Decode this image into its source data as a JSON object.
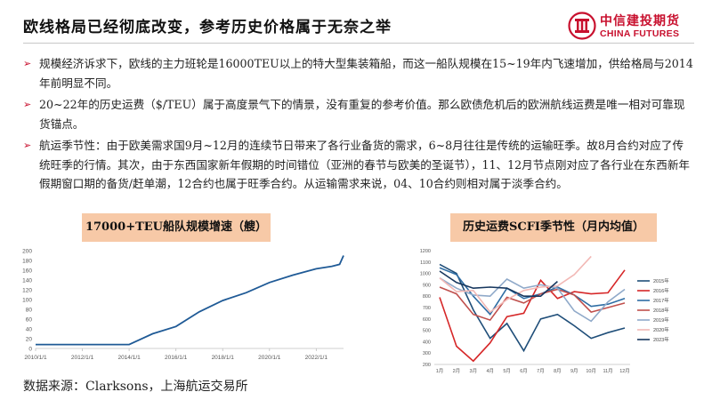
{
  "header": {
    "title": "欧线格局已经彻底改变，参考历史价格属于无奈之举",
    "logo_cn": "中信建投期货",
    "logo_en": "CHINA FUTURES"
  },
  "bullets": [
    "规模经济诉求下，欧线的主力班轮是16000TEU以上的特大型集装箱船，而这一船队规模在15~19年内飞速增加，供给格局与2014年前明显不同。",
    "20~22年的历史运费（$/TEU）属于高度景气下的情景，没有重复的参考价值。那么欧债危机后的欧洲航线运费是唯一相对可靠现货锚点。",
    "航运季节性：由于欧美需求国9月~12月的连续节日带来了各行业备货的需求，6~8月往往是传统的运输旺季。故8月合约对应了传统旺季的行情。其次，由于东西国家新年假期的时间错位（亚洲的春节与欧美的圣诞节），11、12月节点刚对应了各行业在东西新年假期窗口期的备货/赶单潮，12合约也属于旺季合约。从运输需求来说，04、10合约则相对属于淡季合约。"
  ],
  "colors": {
    "accent": "#c8102e",
    "label_bg": "#f7c9a7",
    "line_left": "#1f5a96"
  },
  "chart_data": [
    {
      "type": "line",
      "title": "17000+TEU船队规模增速（艘）",
      "x": [
        "2010/1/1",
        "2011/1/1",
        "2012/1/1",
        "2013/1/1",
        "2014/1/1",
        "2015/1/1",
        "2016/1/1",
        "2017/1/1",
        "2018/1/1",
        "2019/1/1",
        "2020/1/1",
        "2021/1/1",
        "2022/1/1",
        "2022/9/1",
        "2023/1/1",
        "2023/3/1"
      ],
      "series": [
        {
          "values": [
            8,
            8,
            8,
            8,
            8,
            30,
            45,
            75,
            98,
            114,
            135,
            150,
            163,
            168,
            172,
            190
          ]
        }
      ],
      "xticks": [
        "2010/1/1",
        "2012/1/1",
        "2014/1/1",
        "2016/1/1",
        "2018/1/1",
        "2020/1/1",
        "2022/1/1"
      ],
      "ylim": [
        0,
        200
      ],
      "yticks": [
        0,
        20,
        40,
        60,
        80,
        100,
        120,
        140,
        160,
        180,
        200
      ],
      "grid": false
    },
    {
      "type": "line",
      "title": "历史运费SCFI季节性（月内均值）",
      "categories": [
        "1月",
        "2月",
        "3月",
        "4月",
        "5月",
        "6月",
        "7月",
        "8月",
        "9月",
        "10月",
        "11月",
        "12月"
      ],
      "series": [
        {
          "name": "2015年",
          "color": "#1f4e79",
          "values": [
            1080,
            1000,
            680,
            430,
            560,
            320,
            600,
            640,
            540,
            430,
            480,
            520
          ]
        },
        {
          "name": "2016年",
          "color": "#d62728",
          "values": [
            790,
            360,
            230,
            390,
            620,
            650,
            940,
            780,
            840,
            820,
            830,
            1030
          ]
        },
        {
          "name": "2017年",
          "color": "#2e6da4",
          "values": [
            1050,
            990,
            800,
            640,
            870,
            780,
            820,
            880,
            810,
            710,
            730,
            780
          ]
        },
        {
          "name": "2018年",
          "color": "#c0504d",
          "values": [
            880,
            820,
            640,
            590,
            790,
            740,
            820,
            860,
            810,
            660,
            700,
            740
          ]
        },
        {
          "name": "2019年",
          "color": "#8fa9c9",
          "values": [
            960,
            870,
            810,
            800,
            950,
            870,
            900,
            870,
            670,
            580,
            750,
            860
          ]
        },
        {
          "name": "2020年",
          "color": "#f2b8b5",
          "values": [
            960,
            840,
            850,
            660,
            770,
            850,
            880,
            890,
            990,
            1150,
            null,
            null
          ]
        },
        {
          "name": "2023年",
          "color": "#17375e",
          "values": [
            1020,
            920,
            870,
            880,
            870,
            800,
            800,
            930,
            null,
            null,
            null,
            null
          ]
        }
      ],
      "ylim": [
        200,
        1200
      ],
      "yticks": [
        200,
        300,
        400,
        500,
        600,
        700,
        800,
        900,
        1000,
        1100,
        1200
      ],
      "legend": "right",
      "grid": false
    }
  ],
  "source": "数据来源：Clarksons，上海航运交易所"
}
